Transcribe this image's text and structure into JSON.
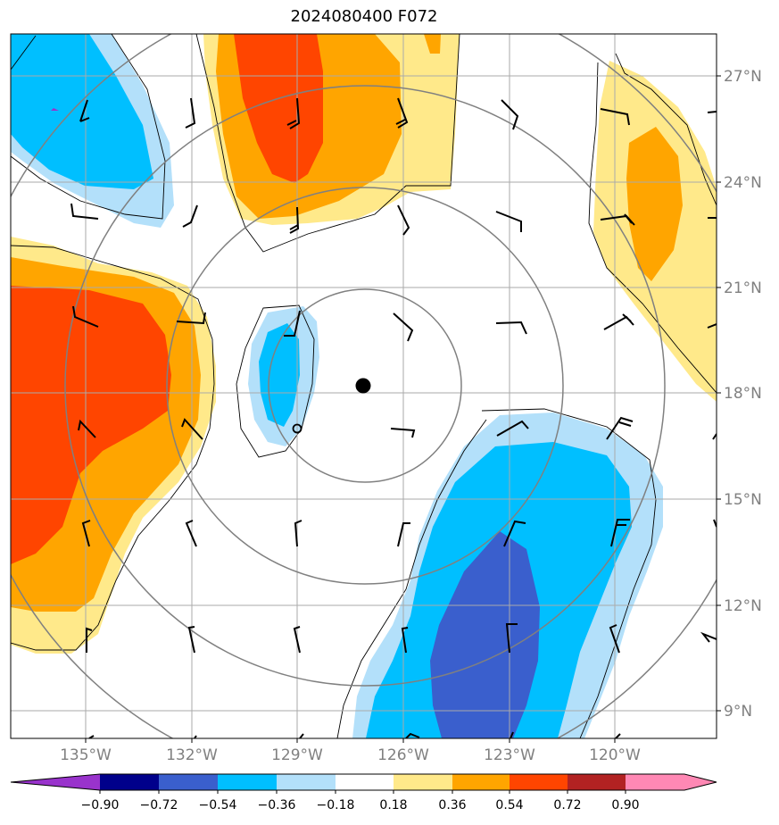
{
  "title": "2024080400 F072",
  "lat_ticks": [
    "27°N",
    "24°N",
    "21°N",
    "18°N",
    "15°N",
    "12°N",
    "9°N"
  ],
  "lon_ticks": [
    "135°W",
    "132°W",
    "129°W",
    "126°W",
    "123°W",
    "120°W"
  ],
  "colorbar": {
    "labels": [
      "−0.90",
      "−0.72",
      "−0.54",
      "−0.36",
      "−0.18",
      "0.18",
      "0.36",
      "0.54",
      "0.72",
      "0.90"
    ],
    "colors": [
      "#9933cc",
      "#00008b",
      "#3a5fcd",
      "#00bfff",
      "#b3e0fa",
      "#ffffff",
      "#ffe98a",
      "#ffa500",
      "#ff4500",
      "#b22222",
      "#ff88b4"
    ]
  },
  "fill_colors": {
    "yellow": "#ffe98a",
    "orange": "#ffa500",
    "red": "#ff4500",
    "light_blue": "#b3e0fa",
    "blue": "#00bfff",
    "dark_blue": "#3a5fcd"
  },
  "storm_center": {
    "lon": "127.2°W",
    "lat": "18.2°N"
  }
}
